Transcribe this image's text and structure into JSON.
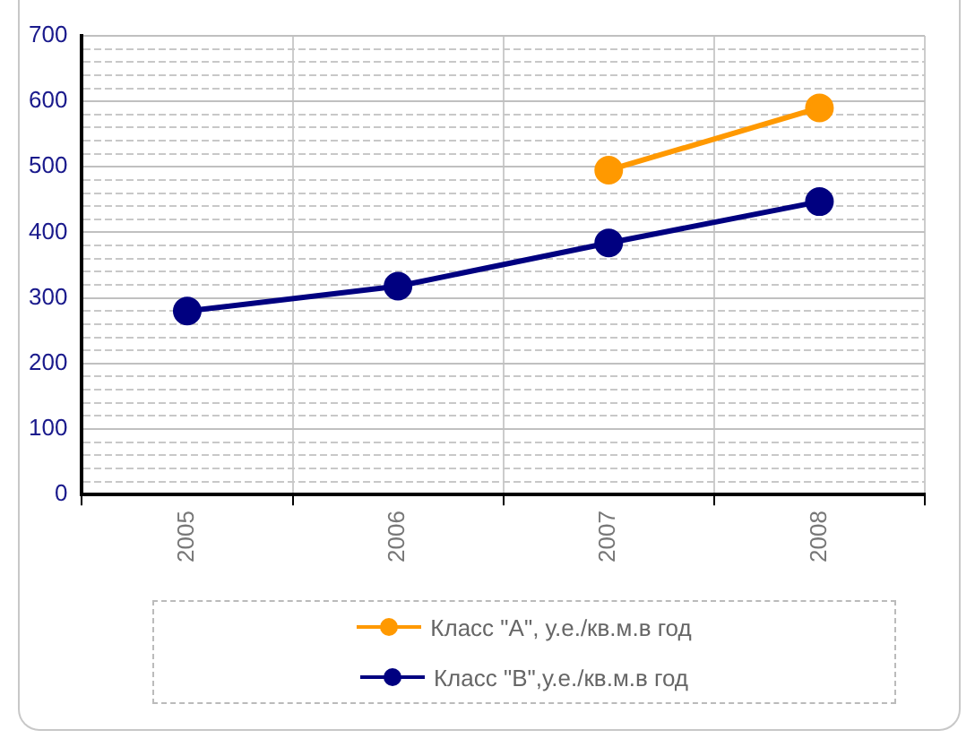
{
  "chart_data": {
    "type": "line",
    "categories": [
      "2005",
      "2006",
      "2007",
      "2008"
    ],
    "series": [
      {
        "name": "Класс \"А\", у.е./кв.м.в год",
        "color": "#ff9900",
        "values": [
          null,
          null,
          495,
          590
        ]
      },
      {
        "name": "Класс \"В\",у.е./кв.м.в год",
        "color": "#000080",
        "values": [
          280,
          318,
          384,
          447
        ]
      }
    ],
    "ylim": [
      0,
      700
    ],
    "yticks": [
      0,
      {
        "value": 20,
        "label": null
      },
      {
        "value": 40,
        "label": null
      },
      {
        "value": 60,
        "label": null
      },
      {
        "value": 80,
        "label": null
      },
      100,
      {
        "value": 120,
        "label": null
      },
      {
        "value": 140,
        "label": null
      },
      {
        "value": 160,
        "label": null
      },
      {
        "value": 180,
        "label": null
      },
      200,
      {
        "value": 220,
        "label": null
      },
      {
        "value": 240,
        "label": null
      },
      {
        "value": 260,
        "label": null
      },
      {
        "value": 280,
        "label": null
      },
      300,
      {
        "value": 320,
        "label": null
      },
      {
        "value": 340,
        "label": null
      },
      {
        "value": 360,
        "label": null
      },
      {
        "value": 380,
        "label": null
      },
      400,
      {
        "value": 420,
        "label": null
      },
      {
        "value": 440,
        "label": null
      },
      {
        "value": 460,
        "label": null
      },
      {
        "value": 480,
        "label": null
      },
      500,
      {
        "value": 520,
        "label": null
      },
      {
        "value": 540,
        "label": null
      },
      {
        "value": 560,
        "label": null
      },
      {
        "value": 580,
        "label": null
      },
      600,
      {
        "value": 620,
        "label": null
      },
      {
        "value": 640,
        "label": null
      },
      {
        "value": 660,
        "label": null
      },
      {
        "value": 680,
        "label": null
      },
      700
    ],
    "grid": true,
    "legend": "bottom",
    "marker": "circle",
    "line_style": "solid"
  }
}
